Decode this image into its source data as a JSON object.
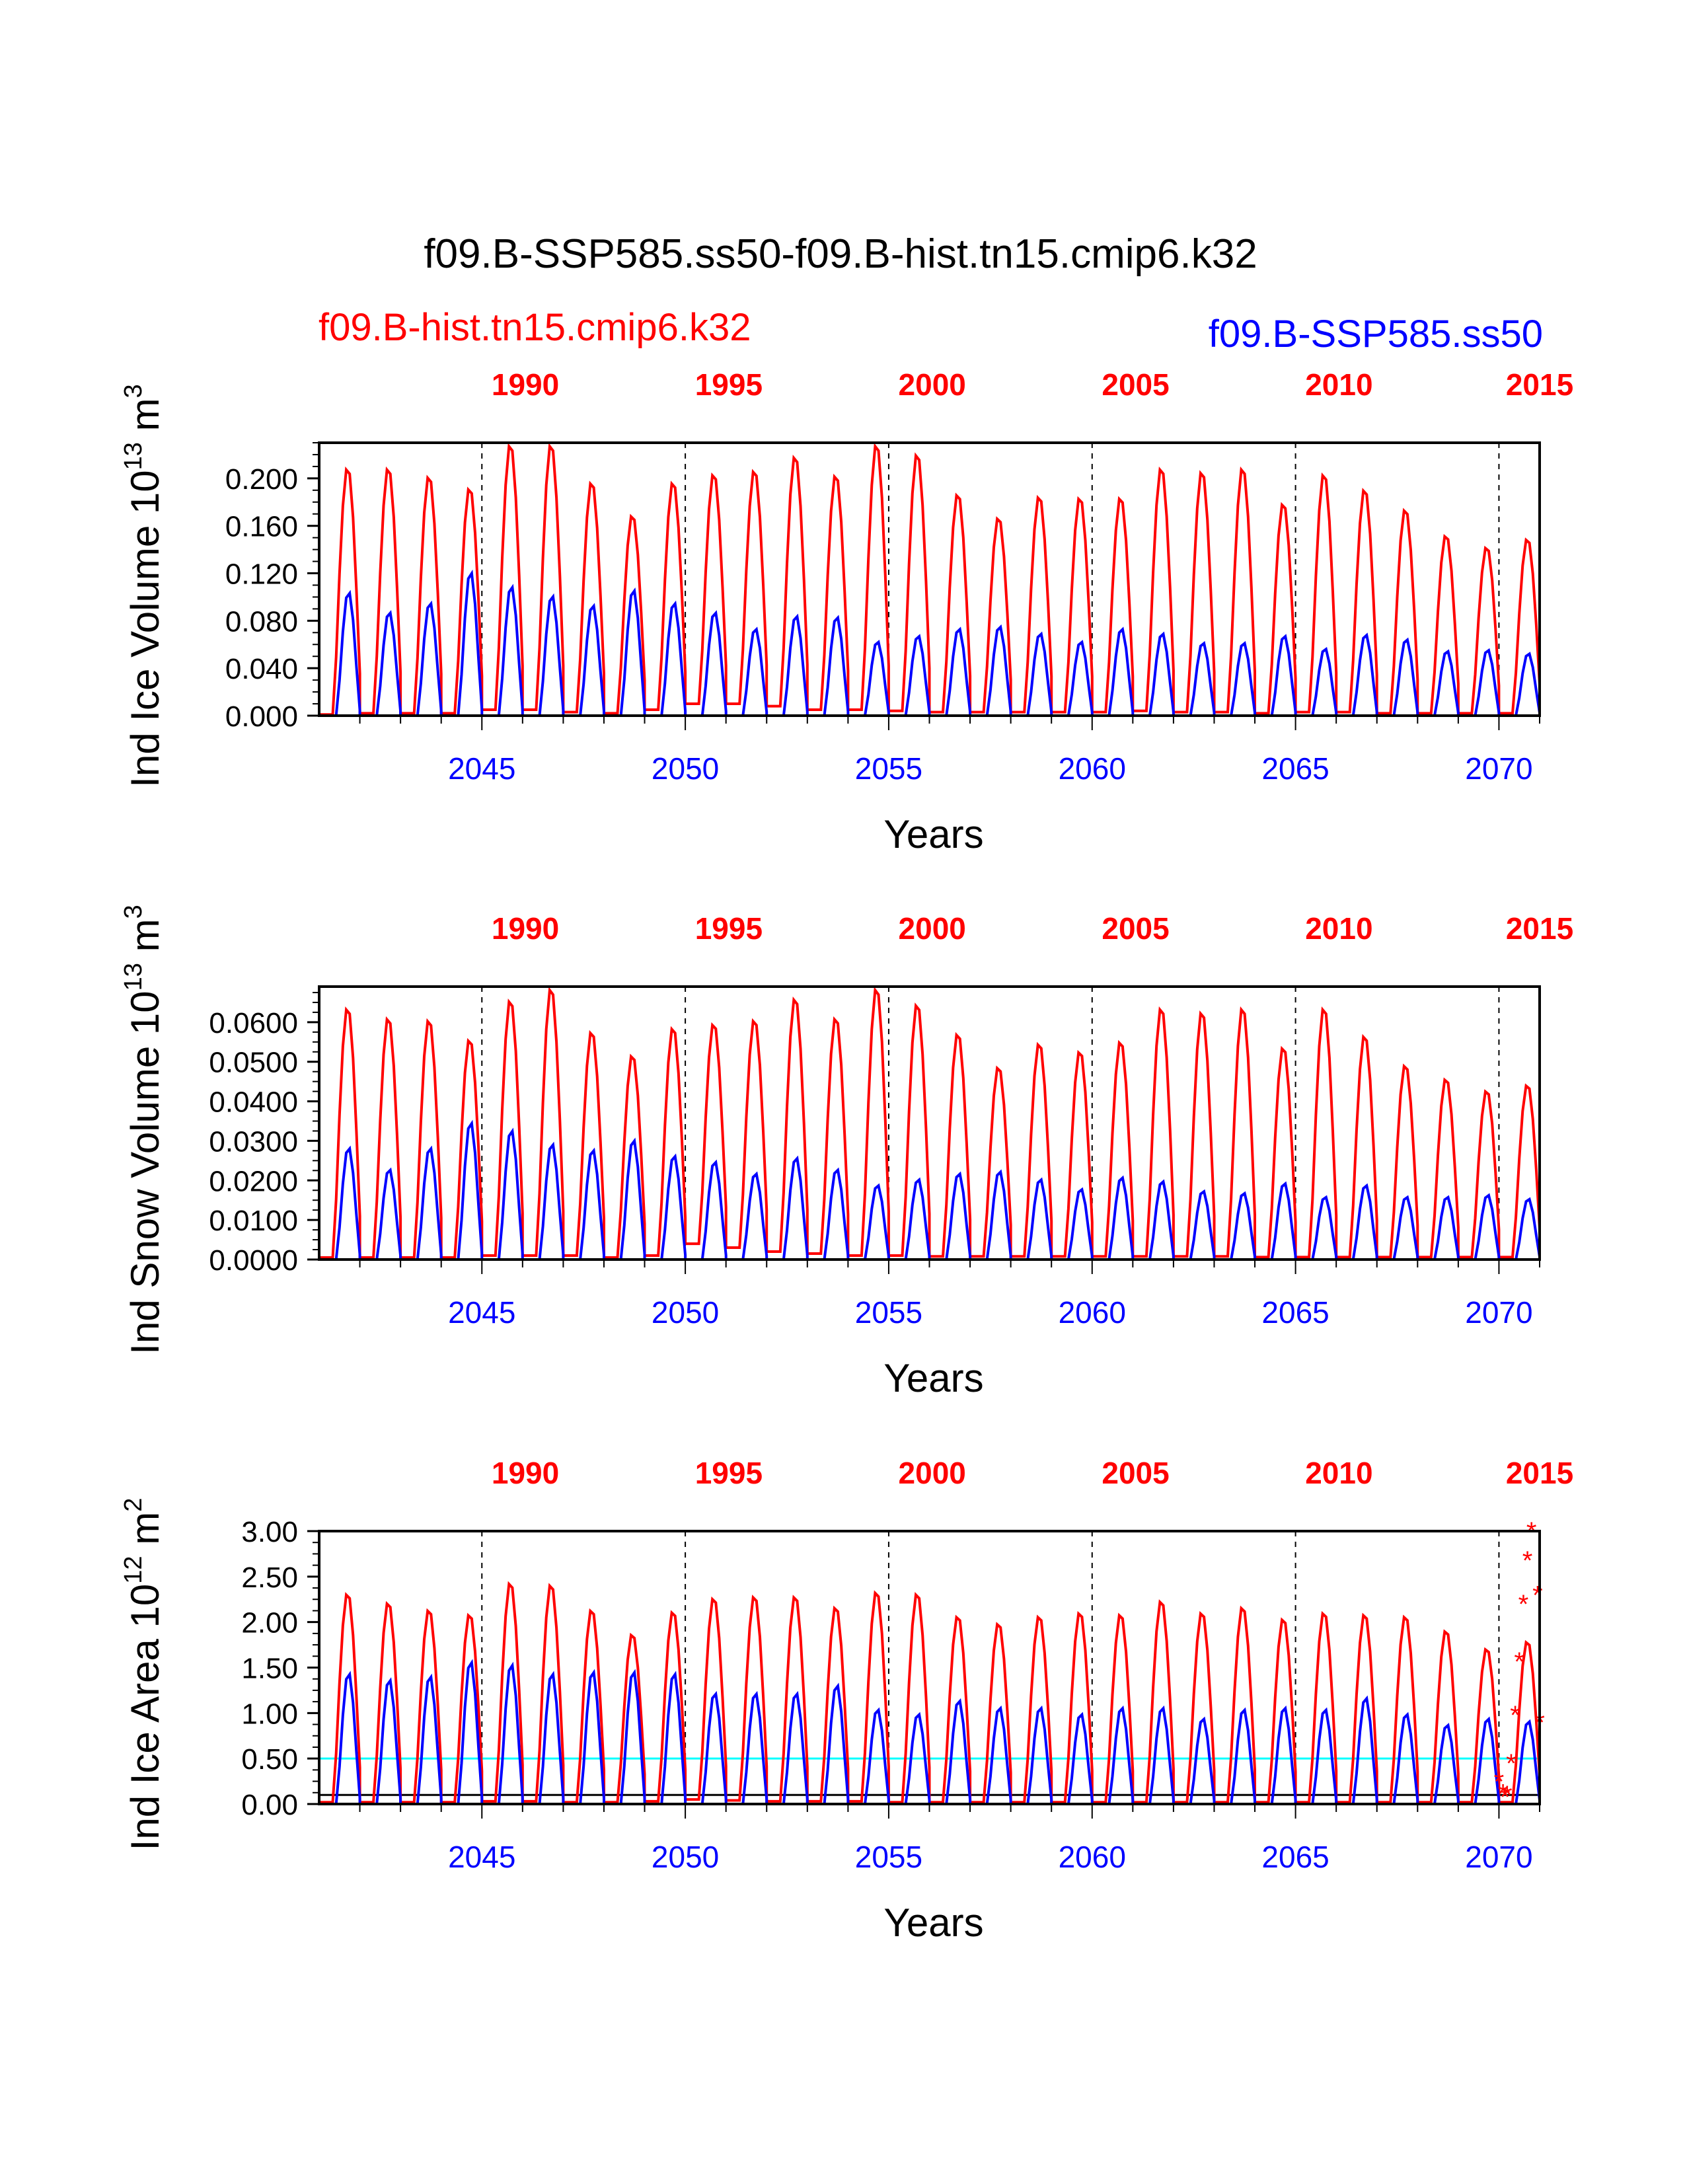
{
  "title": "f09.B-SSP585.ss50-f09.B-hist.tn15.cmip6.k32",
  "legend": {
    "left": {
      "label": "f09.B-hist.tn15.cmip6.k32",
      "color": "#ff0000"
    },
    "right": {
      "label": "f09.B-SSP585.ss50",
      "color": "#0000ff"
    }
  },
  "colors": {
    "hist": "#ff0000",
    "ssp": "#0000ff",
    "threshold": "#00ffff",
    "reference": "#000000"
  },
  "chart_data": [
    {
      "type": "line",
      "ylabel_main": "Ind Ice Volume 10",
      "ylabel_exp": "13",
      "ylabel_unit": " m",
      "ylabel_unit_exp": "3",
      "xlabel": "Years",
      "ylim": [
        0,
        0.23
      ],
      "yticks": [
        "0.000",
        "0.040",
        "0.080",
        "0.120",
        "0.160",
        "0.200"
      ],
      "ytick_values": [
        0,
        0.04,
        0.08,
        0.12,
        0.16,
        0.2
      ],
      "ssp_years": [
        "2045",
        "2050",
        "2055",
        "2060",
        "2065",
        "2070"
      ],
      "hist_years": [
        "1990",
        "1995",
        "2000",
        "2005",
        "2010",
        "2015"
      ],
      "series": [
        {
          "name": "f09.B-hist.tn15.cmip6.k32",
          "annual_max": [
            0.21,
            0.21,
            0.203,
            0.193,
            0.23,
            0.23,
            0.198,
            0.17,
            0.198,
            0.205,
            0.208,
            0.22,
            0.204,
            0.23,
            0.222,
            0.188,
            0.168,
            0.186,
            0.185,
            0.185,
            0.21,
            0.207,
            0.21,
            0.18,
            0.205,
            0.192,
            0.175,
            0.153,
            0.143,
            0.15
          ],
          "annual_min": [
            0.001,
            0.002,
            0.002,
            0.002,
            0.005,
            0.005,
            0.003,
            0.002,
            0.005,
            0.01,
            0.01,
            0.008,
            0.005,
            0.005,
            0.004,
            0.003,
            0.003,
            0.003,
            0.003,
            0.003,
            0.004,
            0.003,
            0.003,
            0.002,
            0.003,
            0.003,
            0.002,
            0.002,
            0.002,
            0.002
          ]
        },
        {
          "name": "f09.B-SSP585.ss50",
          "annual_max": [
            0.105,
            0.088,
            0.096,
            0.122,
            0.11,
            0.102,
            0.094,
            0.107,
            0.096,
            0.088,
            0.074,
            0.085,
            0.084,
            0.063,
            0.068,
            0.074,
            0.076,
            0.07,
            0.063,
            0.074,
            0.07,
            0.062,
            0.062,
            0.068,
            0.057,
            0.069,
            0.065,
            0.055,
            0.056,
            0.053
          ]
        }
      ]
    },
    {
      "type": "line",
      "ylabel_main": "Ind Snow Volume 10",
      "ylabel_exp": "13",
      "ylabel_unit": " m",
      "ylabel_unit_exp": "3",
      "xlabel": "Years",
      "ylim": [
        0,
        0.069
      ],
      "yticks": [
        "0.0000",
        "0.0100",
        "0.0200",
        "0.0300",
        "0.0400",
        "0.0500",
        "0.0600"
      ],
      "ytick_values": [
        0,
        0.01,
        0.02,
        0.03,
        0.04,
        0.05,
        0.06
      ],
      "ssp_years": [
        "2045",
        "2050",
        "2055",
        "2060",
        "2065",
        "2070"
      ],
      "hist_years": [
        "1990",
        "1995",
        "2000",
        "2005",
        "2010",
        "2015"
      ],
      "series": [
        {
          "name": "f09.B-hist.tn15.cmip6.k32",
          "annual_max": [
            0.064,
            0.0615,
            0.061,
            0.056,
            0.066,
            0.069,
            0.058,
            0.052,
            0.059,
            0.06,
            0.061,
            0.0665,
            0.0615,
            0.069,
            0.065,
            0.0575,
            0.049,
            0.055,
            0.053,
            0.0555,
            0.064,
            0.063,
            0.064,
            0.054,
            0.064,
            0.057,
            0.0495,
            0.046,
            0.043,
            0.0445
          ],
          "annual_min": [
            0.0005,
            0.0005,
            0.0005,
            0.0005,
            0.001,
            0.001,
            0.001,
            0.0005,
            0.001,
            0.004,
            0.003,
            0.002,
            0.0015,
            0.001,
            0.001,
            0.0008,
            0.0008,
            0.0008,
            0.0008,
            0.0008,
            0.0008,
            0.0008,
            0.0008,
            0.0006,
            0.0006,
            0.0006,
            0.0006,
            0.0006,
            0.0006,
            0.0006
          ]
        },
        {
          "name": "f09.B-SSP585.ss50",
          "annual_max": [
            0.0285,
            0.023,
            0.0285,
            0.035,
            0.033,
            0.0295,
            0.028,
            0.0305,
            0.0265,
            0.025,
            0.022,
            0.026,
            0.023,
            0.019,
            0.0205,
            0.022,
            0.0225,
            0.0205,
            0.018,
            0.021,
            0.02,
            0.0175,
            0.017,
            0.0195,
            0.016,
            0.019,
            0.016,
            0.016,
            0.0165,
            0.0155
          ]
        }
      ]
    },
    {
      "type": "line",
      "ylabel_main": "Ind Ice Area 10",
      "ylabel_exp": "12",
      "ylabel_unit": " m",
      "ylabel_unit_exp": "2",
      "xlabel": "Years",
      "ylim": [
        0,
        3.0
      ],
      "yticks": [
        "0.00",
        "0.50",
        "1.00",
        "1.50",
        "2.00",
        "2.50",
        "3.00"
      ],
      "ytick_values": [
        0,
        0.5,
        1.0,
        1.5,
        2.0,
        2.5,
        3.0
      ],
      "ssp_years": [
        "2045",
        "2050",
        "2055",
        "2060",
        "2065",
        "2070"
      ],
      "hist_years": [
        "1990",
        "1995",
        "2000",
        "2005",
        "2010",
        "2015"
      ],
      "threshold": 0.5,
      "reference": 0.1,
      "series": [
        {
          "name": "f09.B-hist.tn15.cmip6.k32",
          "annual_max": [
            2.33,
            2.23,
            2.15,
            2.1,
            2.45,
            2.43,
            2.15,
            1.88,
            2.13,
            2.28,
            2.3,
            2.3,
            2.18,
            2.35,
            2.33,
            2.08,
            2.0,
            2.08,
            2.12,
            2.1,
            2.25,
            2.12,
            2.18,
            2.05,
            2.12,
            2.1,
            2.08,
            1.92,
            1.72,
            1.8
          ],
          "annual_min": [
            0.02,
            0.02,
            0.02,
            0.02,
            0.03,
            0.03,
            0.02,
            0.02,
            0.03,
            0.05,
            0.04,
            0.03,
            0.03,
            0.03,
            0.02,
            0.02,
            0.02,
            0.02,
            0.02,
            0.02,
            0.02,
            0.02,
            0.02,
            0.02,
            0.02,
            0.02,
            0.02,
            0.02,
            0.02,
            0.02
          ]
        },
        {
          "name": "f09.B-SSP585.ss50",
          "annual_max": [
            1.45,
            1.38,
            1.42,
            1.58,
            1.55,
            1.45,
            1.47,
            1.47,
            1.45,
            1.23,
            1.23,
            1.23,
            1.32,
            1.05,
            1.0,
            1.15,
            1.07,
            1.07,
            1.0,
            1.07,
            1.07,
            0.95,
            1.05,
            1.07,
            1.05,
            1.18,
            1.0,
            0.88,
            0.95,
            0.92
          ]
        }
      ],
      "markers": {
        "name": "f09.B-hist.tn15.cmip6.k32",
        "symbol": "*",
        "x": [
          2070.0,
          2070.1,
          2070.15,
          2070.2,
          2070.3,
          2070.4,
          2070.5,
          2070.6,
          2070.7,
          2070.8,
          2070.95,
          2071.0
        ],
        "y": [
          0.25,
          0.12,
          0.08,
          0.1,
          0.45,
          0.98,
          1.57,
          2.2,
          2.68,
          3.0,
          2.3,
          0.9
        ]
      }
    }
  ]
}
